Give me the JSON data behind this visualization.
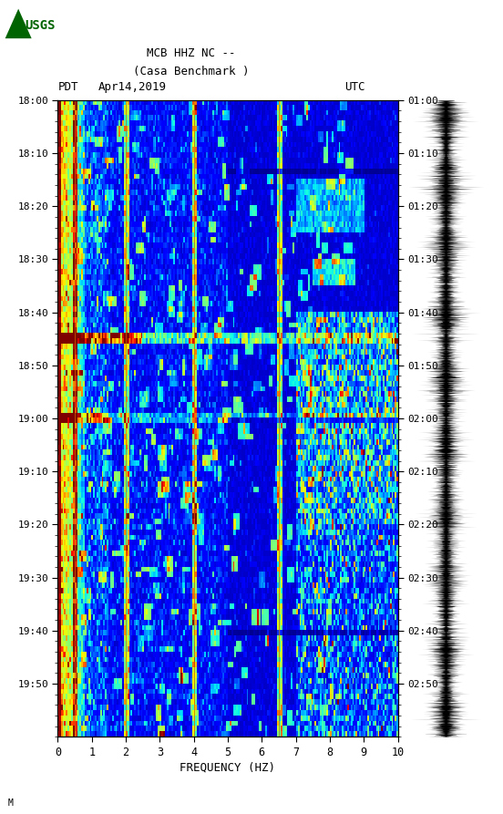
{
  "title_line1": "MCB HHZ NC --",
  "title_line2": "(Casa Benchmark )",
  "label_left": "PDT",
  "label_date": "Apr14,2019",
  "label_right": "UTC",
  "freq_label": "FREQUENCY (HZ)",
  "time_ticks_pdt": [
    "18:00",
    "18:10",
    "18:20",
    "18:30",
    "18:40",
    "18:50",
    "19:00",
    "19:10",
    "19:20",
    "19:30",
    "19:40",
    "19:50"
  ],
  "time_ticks_utc": [
    "01:00",
    "01:10",
    "01:20",
    "01:30",
    "01:40",
    "01:50",
    "02:00",
    "02:10",
    "02:20",
    "02:30",
    "02:40",
    "02:50"
  ],
  "freq_ticks": [
    0,
    1,
    2,
    3,
    4,
    5,
    6,
    7,
    8,
    9,
    10
  ],
  "background_color": "#ffffff",
  "spectrogram_cmap": "jet",
  "fig_width": 5.52,
  "fig_height": 8.93,
  "usgs_logo_color": "#006400",
  "annotation": "M",
  "n_time": 120,
  "n_freq": 200,
  "vmin": 0,
  "vmax": 8
}
